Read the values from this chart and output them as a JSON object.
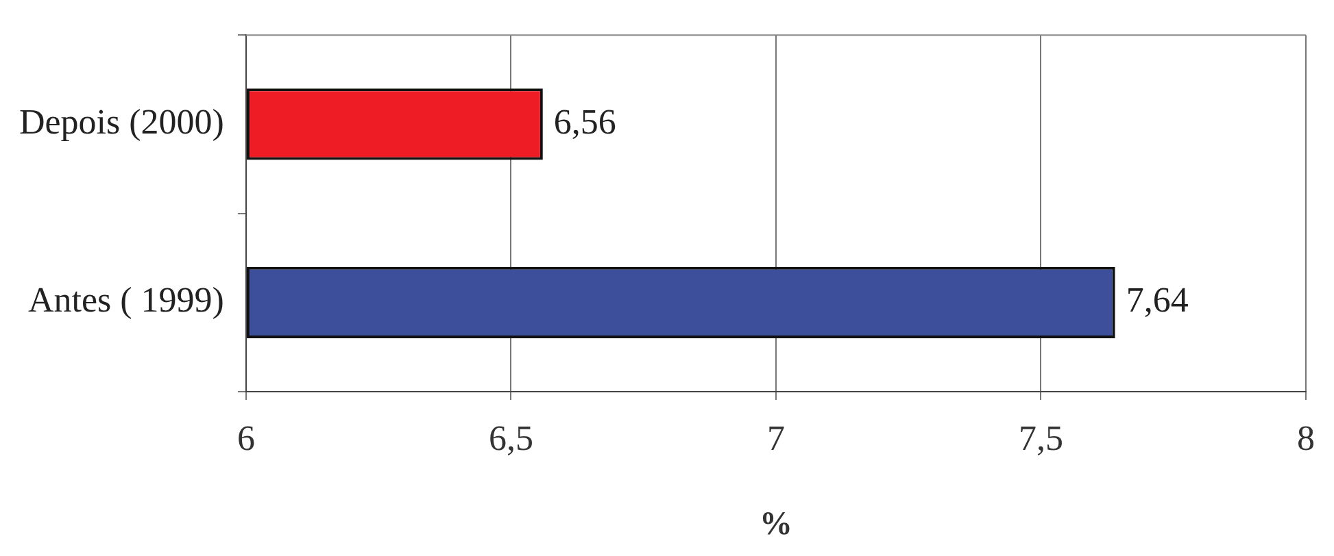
{
  "chart_data": {
    "type": "bar",
    "orientation": "horizontal",
    "categories": [
      "Depois (2000)",
      "Antes ( 1999)"
    ],
    "values": [
      6.56,
      7.64
    ],
    "colors": [
      "#ee1c25",
      "#3d4f9a"
    ],
    "value_labels": [
      "6,56",
      "7,64"
    ],
    "xlabel": "%",
    "xlim": [
      6,
      8
    ],
    "xticks": [
      6,
      {
        "value": 6.5,
        "label": "6,5"
      },
      7,
      {
        "value": 7.5,
        "label": "7,5"
      },
      8
    ],
    "grid": "x",
    "legend": false
  }
}
